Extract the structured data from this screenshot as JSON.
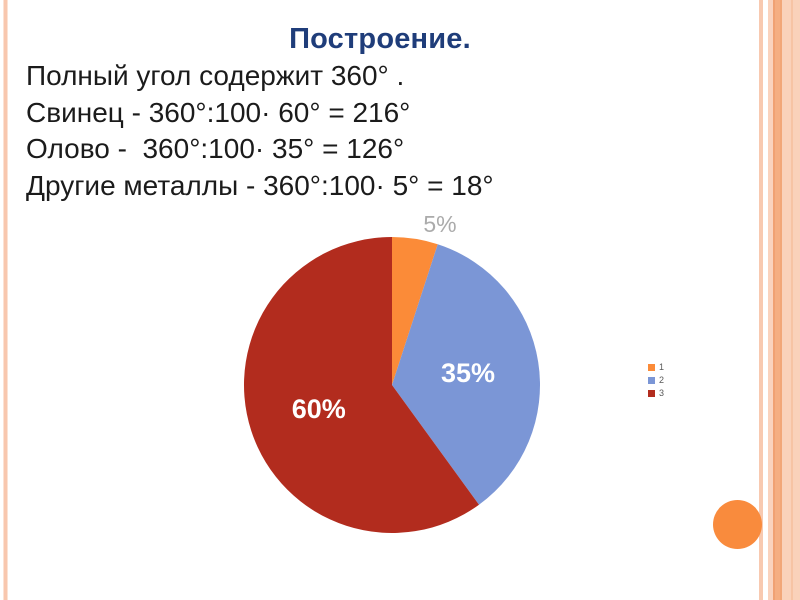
{
  "slide": {
    "title": "Построение.",
    "body_lines": [
      "Полный угол содержит 360° .",
      "Свинец - 360°:100· 60° = 216°",
      "Олово -  360°:100· 35° = 126°",
      "Другие металлы - 360°:100· 5° = 18°"
    ]
  },
  "chart_data": {
    "type": "pie",
    "title": "",
    "categories": [
      "1",
      "2",
      "3"
    ],
    "values": [
      5,
      35,
      60
    ],
    "unit": "%",
    "slice_labels": [
      "5%",
      "35%",
      "60%"
    ],
    "colors": [
      "#FB8B38",
      "#7B96D6",
      "#B22C1E"
    ],
    "series_meaning": [
      "Другие металлы",
      "Олово",
      "Свинец"
    ],
    "angles_deg": [
      18,
      126,
      216
    ],
    "start_angle": "top",
    "direction": "clockwise",
    "legend": {
      "position": "right",
      "entries": [
        "1",
        "2",
        "3"
      ]
    },
    "label_styles": {
      "inside_color": "#FFFFFF",
      "outside_color": "#ABABAB"
    }
  },
  "theme": {
    "title_color": "#1F3D7A",
    "body_text_color": "#1B1B1B",
    "accent_orange": "#F98B3D",
    "stripe_pink": "#F8C9B0",
    "band_peach": "#FAD2BA",
    "band_orange": "#F5AE82"
  }
}
